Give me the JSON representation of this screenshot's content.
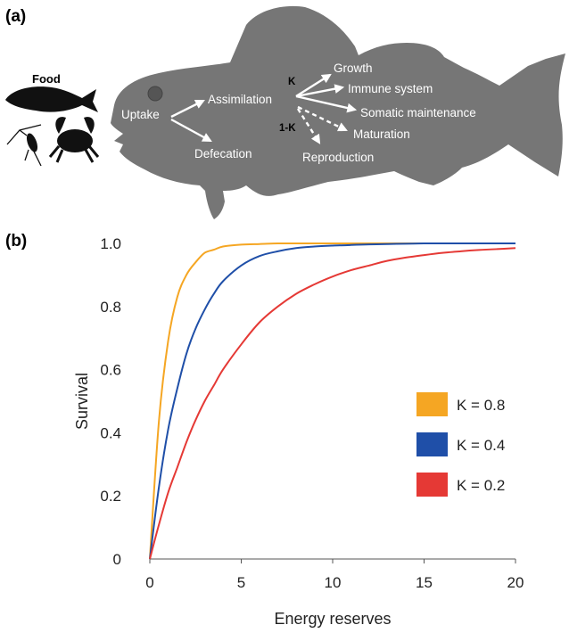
{
  "panel_a": {
    "label": "(a)",
    "food_label": "Food",
    "k_label": "K",
    "one_minus_k_label": "1-K",
    "processes": {
      "uptake": "Uptake",
      "assimilation": "Assimilation",
      "defecation": "Defecation",
      "growth": "Growth",
      "immune": "Immune system",
      "somatic": "Somatic maintenance",
      "maturation": "Maturation",
      "reproduction": "Reproduction"
    },
    "colors": {
      "fish_body": "#767676",
      "eye": "#555555",
      "arrow": "#ffffff"
    },
    "icons": [
      "fish-food-icon",
      "copepod-icon",
      "crab-icon",
      "cod-fish-icon"
    ]
  },
  "chart_data": {
    "type": "line",
    "panel_label": "(b)",
    "title": "",
    "xlabel": "Energy reserves",
    "ylabel": "Survival",
    "xlim": [
      0,
      20
    ],
    "ylim": [
      0,
      1.0
    ],
    "xticks": [
      0,
      5,
      10,
      15,
      20
    ],
    "yticks": [
      0,
      0.2,
      0.4,
      0.6,
      0.8,
      1.0
    ],
    "ytick_labels": [
      "0",
      "0.2",
      "0.4",
      "0.6",
      "0.8",
      "1.0"
    ],
    "grid": false,
    "legend_position": "right",
    "x": [
      0,
      0.5,
      1,
      1.5,
      2,
      2.5,
      3,
      3.5,
      4,
      5,
      6,
      7,
      8,
      9,
      10,
      11,
      12,
      13,
      14,
      15,
      16,
      17,
      18,
      19,
      20
    ],
    "series": [
      {
        "name": "K = 0.8",
        "color": "#f5a623",
        "values": [
          0,
          0.44,
          0.69,
          0.83,
          0.9,
          0.94,
          0.97,
          0.98,
          0.99,
          0.996,
          0.998,
          1.0,
          1.0,
          1.0,
          1.0,
          1.0,
          1.0,
          1.0,
          1.0,
          1.0,
          1.0,
          1.0,
          1.0,
          1.0,
          1.0
        ]
      },
      {
        "name": "K = 0.4",
        "color": "#1f4fa8",
        "values": [
          0,
          0.23,
          0.41,
          0.54,
          0.65,
          0.73,
          0.79,
          0.84,
          0.88,
          0.93,
          0.96,
          0.975,
          0.985,
          0.99,
          0.993,
          0.995,
          0.997,
          0.998,
          0.999,
          1.0,
          1.0,
          1.0,
          1.0,
          1.0,
          1.0
        ]
      },
      {
        "name": "K = 0.2",
        "color": "#e53935",
        "values": [
          0,
          0.11,
          0.21,
          0.29,
          0.37,
          0.44,
          0.5,
          0.55,
          0.6,
          0.68,
          0.75,
          0.8,
          0.84,
          0.87,
          0.895,
          0.915,
          0.93,
          0.945,
          0.955,
          0.963,
          0.97,
          0.975,
          0.979,
          0.982,
          0.985
        ]
      }
    ]
  }
}
